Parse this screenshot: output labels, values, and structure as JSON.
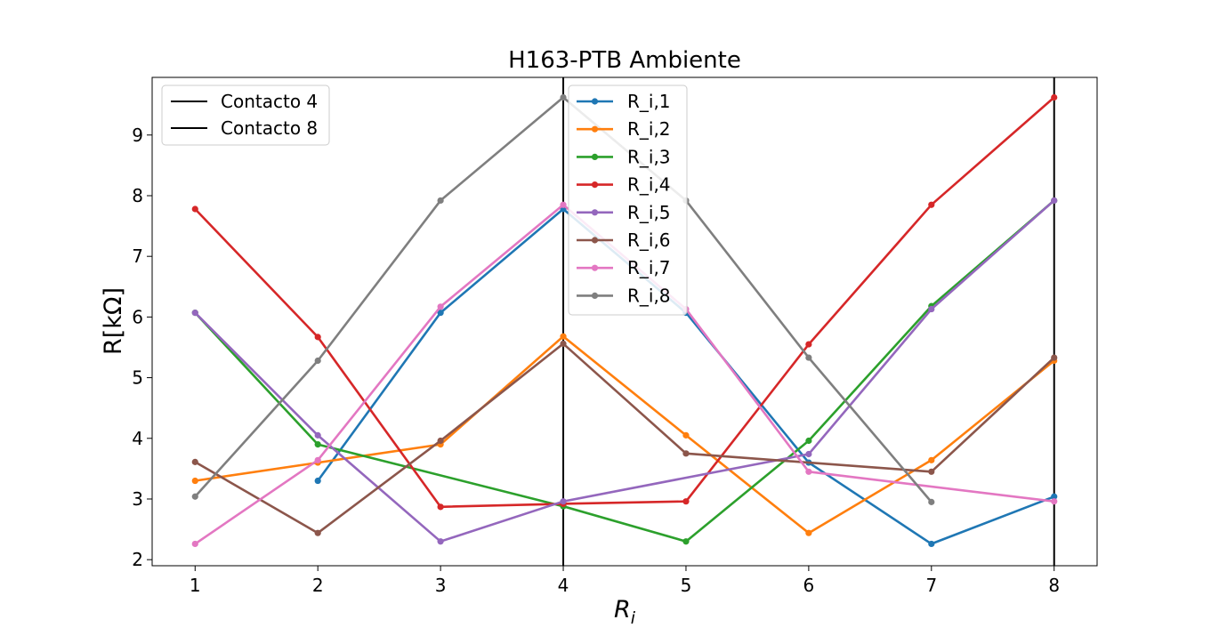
{
  "chart_data": {
    "type": "line",
    "title": "H163-PTB Ambiente",
    "xlabel": "R_i",
    "ylabel": "R[kΩ]",
    "xlim": [
      0.65,
      8.35
    ],
    "ylim": [
      1.9,
      9.95
    ],
    "xticks": [
      1,
      2,
      3,
      4,
      5,
      6,
      7,
      8
    ],
    "yticks": [
      2,
      3,
      4,
      5,
      6,
      7,
      8,
      9
    ],
    "grid": false,
    "vlines": [
      {
        "x": 4,
        "label": "Contacto 4",
        "color": "#000000"
      },
      {
        "x": 8,
        "label": "Contacto 8",
        "color": "#000000"
      }
    ],
    "vline_legend_position": "upper-left",
    "series_legend_position": "upper-center",
    "series": [
      {
        "name": "R_i,1",
        "color": "#1f77b4",
        "x": [
          2,
          3,
          4,
          5,
          6,
          7,
          8
        ],
        "values": [
          3.3,
          6.07,
          7.78,
          6.07,
          3.6,
          2.26,
          3.04
        ]
      },
      {
        "name": "R_i,2",
        "color": "#ff7f0e",
        "x": [
          1,
          2,
          3,
          4,
          5,
          6,
          7,
          8
        ],
        "values": [
          3.3,
          3.6,
          3.9,
          5.68,
          4.05,
          2.44,
          3.64,
          5.28
        ]
      },
      {
        "name": "R_i,3",
        "color": "#2ca02c",
        "x": [
          1,
          2,
          4,
          5,
          6,
          7,
          8
        ],
        "values": [
          6.07,
          3.9,
          2.88,
          2.3,
          3.96,
          6.18,
          7.92
        ]
      },
      {
        "name": "R_i,4",
        "color": "#d62728",
        "x": [
          1,
          2,
          3,
          4,
          5,
          6,
          7,
          8
        ],
        "values": [
          7.78,
          5.67,
          2.87,
          2.92,
          2.96,
          5.55,
          7.85,
          9.62
        ]
      },
      {
        "name": "R_i,5",
        "color": "#9467bd",
        "x": [
          1,
          2,
          3,
          4,
          6,
          7,
          8
        ],
        "values": [
          6.07,
          4.05,
          2.3,
          2.96,
          3.74,
          6.13,
          7.92
        ]
      },
      {
        "name": "R_i,6",
        "color": "#8c564b",
        "x": [
          1,
          2,
          3,
          4,
          5,
          7,
          8
        ],
        "values": [
          3.61,
          2.44,
          3.96,
          5.56,
          3.75,
          3.45,
          5.33
        ]
      },
      {
        "name": "R_i,7",
        "color": "#e377c2",
        "x": [
          1,
          2,
          3,
          4,
          5,
          6,
          8
        ],
        "values": [
          2.26,
          3.64,
          6.17,
          7.85,
          6.13,
          3.45,
          2.96
        ]
      },
      {
        "name": "R_i,8",
        "color": "#7f7f7f",
        "x": [
          1,
          2,
          3,
          4,
          5,
          6,
          7
        ],
        "values": [
          3.04,
          5.28,
          7.92,
          9.62,
          7.92,
          5.33,
          2.95
        ]
      }
    ]
  }
}
